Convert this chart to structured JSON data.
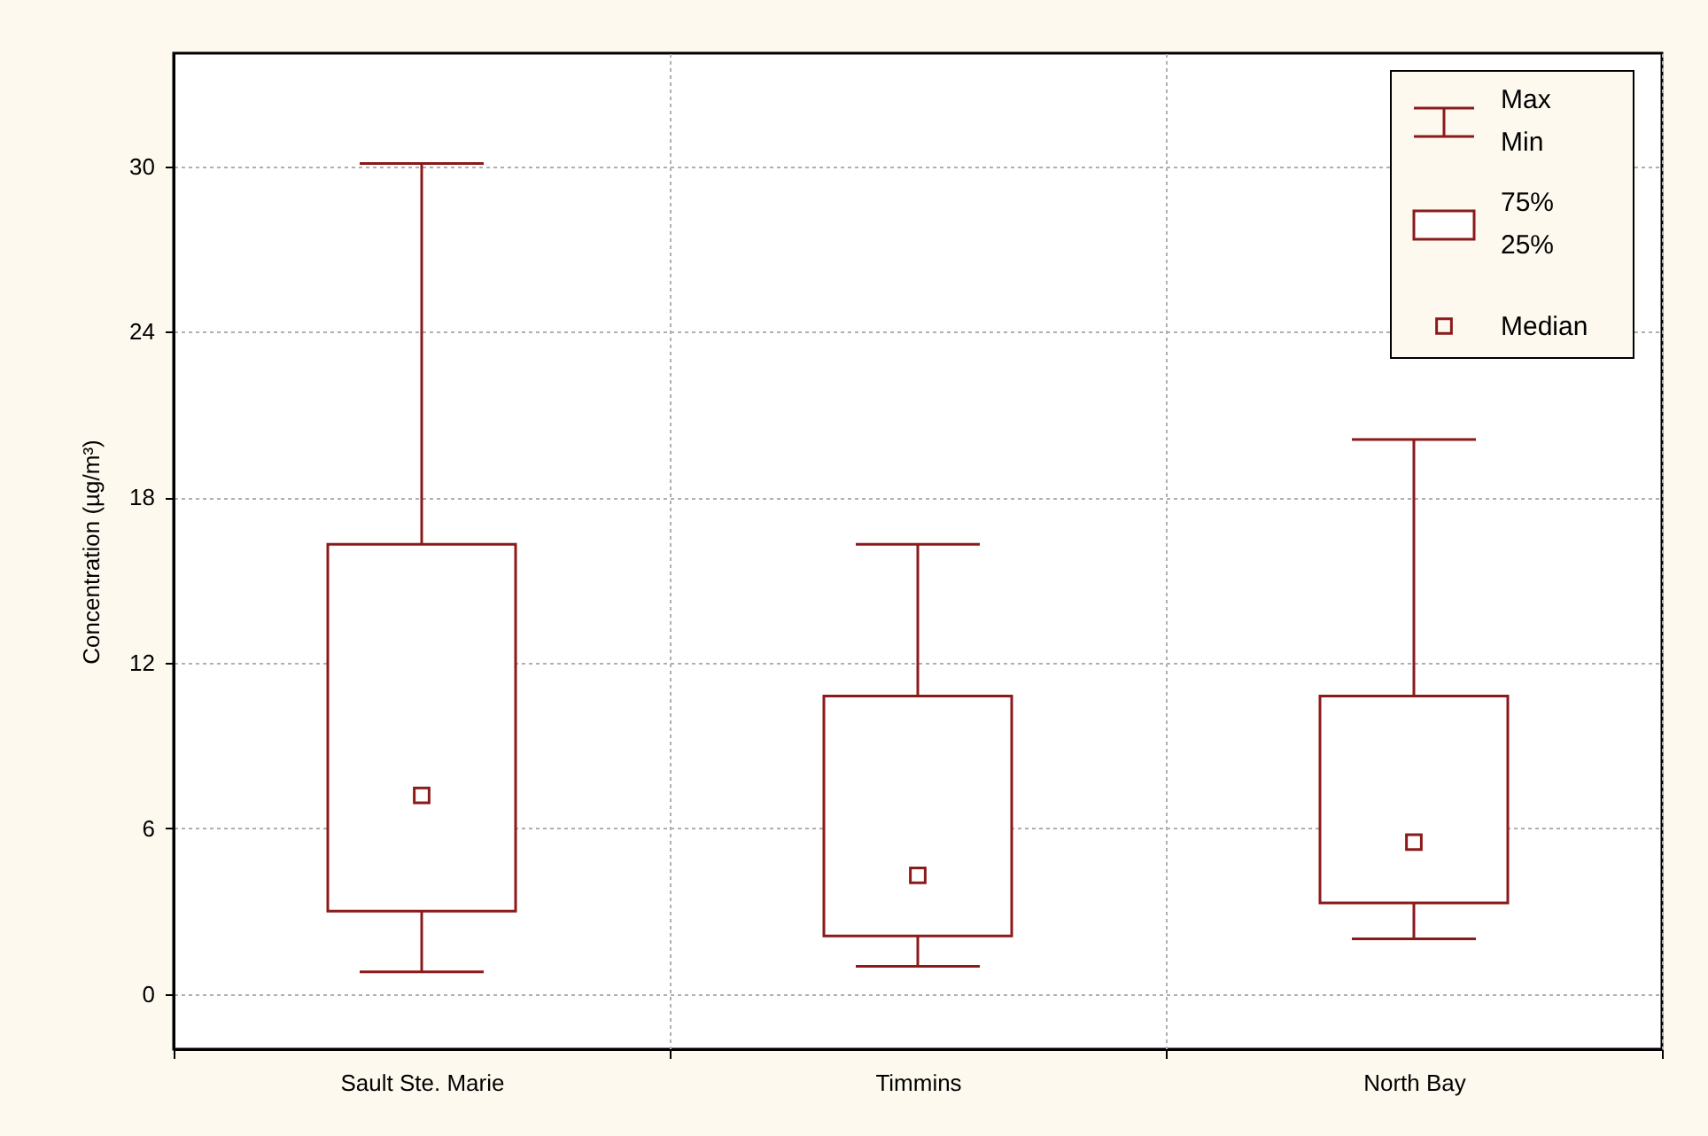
{
  "chart_data": {
    "type": "box",
    "ylabel": "Concentration (µg/m³)",
    "categories": [
      "Sault Ste. Marie",
      "Timmins",
      "North Bay"
    ],
    "series": [
      {
        "color": "#8b1a1a",
        "boxes": [
          {
            "low": 0.8,
            "q1": 3.0,
            "median": 7.2,
            "q3": 16.3,
            "high": 30.1
          },
          {
            "low": 1.0,
            "q1": 2.1,
            "median": 4.3,
            "q3": 10.8,
            "high": 16.3
          },
          {
            "low": 2.0,
            "q1": 3.3,
            "median": 5.5,
            "q3": 10.8,
            "high": 20.1
          }
        ]
      }
    ],
    "ylim": [
      -2,
      34.1
    ],
    "yticks": [
      0,
      6,
      12,
      18,
      24,
      30
    ],
    "grid": true,
    "annotations": [
      "Max\nMin",
      "75%\n25%",
      "Median"
    ]
  }
}
